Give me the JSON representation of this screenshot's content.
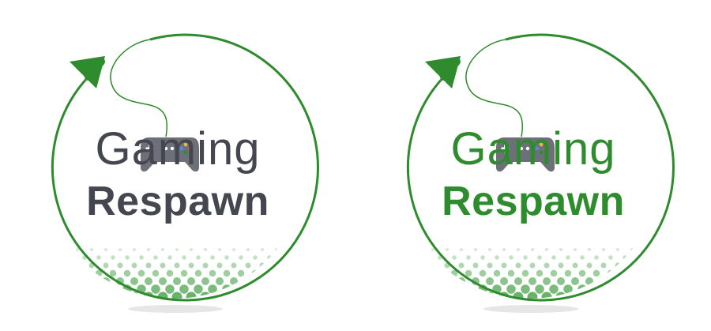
{
  "logos": [
    {
      "variant": "dark",
      "line1": "Gaming",
      "line2": "Respawn",
      "text_color": "#454750"
    },
    {
      "variant": "green",
      "line1": "Gaming",
      "line2": "Respawn",
      "text_color": "#2e8b2e"
    }
  ],
  "colors": {
    "accent": "#2e8b2e",
    "dots": "#5aaa5a",
    "controller": "#6e7078",
    "shadow": "#e6e6e6"
  },
  "icons": [
    "game-controller-icon",
    "arrow-icon",
    "halftone-dots"
  ]
}
